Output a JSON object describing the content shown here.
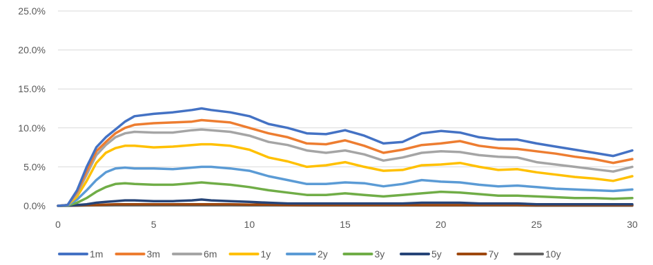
{
  "chart_data": {
    "type": "line",
    "title": "",
    "xlabel": "",
    "ylabel": "",
    "xlim": [
      0,
      30
    ],
    "ylim": [
      0,
      0.25
    ],
    "x_ticks": [
      0,
      5,
      10,
      15,
      20,
      25,
      30
    ],
    "y_ticks": [
      0.0,
      0.05,
      0.1,
      0.15,
      0.2,
      0.25
    ],
    "y_tick_labels": [
      "0.0%",
      "5.0%",
      "10.0%",
      "15.0%",
      "20.0%",
      "25.0%"
    ],
    "grid": "horizontal",
    "legend": "bottom",
    "x": [
      0,
      0.5,
      1,
      1.5,
      2,
      2.5,
      3,
      3.5,
      4,
      5,
      6,
      7,
      7.5,
      8,
      9,
      10,
      11,
      12,
      13,
      14,
      15,
      16,
      17,
      18,
      19,
      20,
      21,
      22,
      23,
      24,
      25,
      26,
      27,
      28,
      29,
      30
    ],
    "series": [
      {
        "name": "1m",
        "color": "#4472C4",
        "values": [
          0,
          0.001,
          0.02,
          0.05,
          0.075,
          0.088,
          0.098,
          0.108,
          0.115,
          0.118,
          0.12,
          0.123,
          0.125,
          0.123,
          0.12,
          0.115,
          0.105,
          0.1,
          0.093,
          0.092,
          0.097,
          0.09,
          0.08,
          0.082,
          0.093,
          0.096,
          0.094,
          0.088,
          0.085,
          0.085,
          0.08,
          0.076,
          0.072,
          0.068,
          0.064,
          0.071
        ]
      },
      {
        "name": "3m",
        "color": "#ED7D31",
        "values": [
          0,
          0.001,
          0.018,
          0.045,
          0.07,
          0.082,
          0.093,
          0.1,
          0.104,
          0.106,
          0.107,
          0.108,
          0.11,
          0.109,
          0.107,
          0.1,
          0.093,
          0.088,
          0.08,
          0.079,
          0.084,
          0.077,
          0.068,
          0.072,
          0.078,
          0.08,
          0.083,
          0.077,
          0.074,
          0.073,
          0.07,
          0.067,
          0.063,
          0.06,
          0.055,
          0.06
        ]
      },
      {
        "name": "6m",
        "color": "#A5A5A5",
        "values": [
          0,
          0.001,
          0.016,
          0.04,
          0.065,
          0.078,
          0.088,
          0.093,
          0.095,
          0.094,
          0.094,
          0.097,
          0.098,
          0.097,
          0.095,
          0.09,
          0.082,
          0.078,
          0.071,
          0.068,
          0.071,
          0.066,
          0.058,
          0.062,
          0.068,
          0.07,
          0.069,
          0.065,
          0.063,
          0.062,
          0.056,
          0.053,
          0.05,
          0.047,
          0.044,
          0.05
        ]
      },
      {
        "name": "1y",
        "color": "#FFC000",
        "values": [
          0,
          0.001,
          0.012,
          0.032,
          0.055,
          0.068,
          0.074,
          0.077,
          0.077,
          0.075,
          0.076,
          0.078,
          0.079,
          0.079,
          0.077,
          0.072,
          0.062,
          0.057,
          0.05,
          0.052,
          0.056,
          0.05,
          0.045,
          0.046,
          0.052,
          0.053,
          0.055,
          0.05,
          0.046,
          0.047,
          0.043,
          0.04,
          0.037,
          0.035,
          0.032,
          0.038
        ]
      },
      {
        "name": "2y",
        "color": "#5B9BD5",
        "values": [
          0,
          0.0005,
          0.008,
          0.02,
          0.033,
          0.043,
          0.048,
          0.049,
          0.048,
          0.048,
          0.047,
          0.049,
          0.05,
          0.05,
          0.048,
          0.045,
          0.038,
          0.033,
          0.028,
          0.028,
          0.03,
          0.029,
          0.025,
          0.028,
          0.033,
          0.031,
          0.03,
          0.027,
          0.025,
          0.026,
          0.024,
          0.022,
          0.021,
          0.02,
          0.019,
          0.021
        ]
      },
      {
        "name": "3y",
        "color": "#70AD47",
        "values": [
          0,
          0.0003,
          0.004,
          0.01,
          0.018,
          0.024,
          0.028,
          0.029,
          0.028,
          0.027,
          0.027,
          0.029,
          0.03,
          0.029,
          0.027,
          0.024,
          0.02,
          0.017,
          0.014,
          0.014,
          0.016,
          0.014,
          0.012,
          0.014,
          0.016,
          0.018,
          0.017,
          0.015,
          0.013,
          0.013,
          0.012,
          0.011,
          0.01,
          0.01,
          0.009,
          0.01
        ]
      },
      {
        "name": "5y",
        "color": "#264478",
        "values": [
          0,
          0.0001,
          0.001,
          0.002,
          0.004,
          0.005,
          0.006,
          0.007,
          0.007,
          0.006,
          0.006,
          0.007,
          0.008,
          0.007,
          0.006,
          0.005,
          0.004,
          0.003,
          0.003,
          0.003,
          0.003,
          0.003,
          0.003,
          0.003,
          0.004,
          0.004,
          0.004,
          0.003,
          0.003,
          0.003,
          0.002,
          0.002,
          0.002,
          0.002,
          0.002,
          0.002
        ]
      },
      {
        "name": "7y",
        "color": "#9E480E",
        "values": [
          0,
          0.0001,
          0.0005,
          0.001,
          0.001,
          0.0015,
          0.002,
          0.002,
          0.002,
          0.002,
          0.002,
          0.002,
          0.002,
          0.002,
          0.002,
          0.0015,
          0.0015,
          0.001,
          0.001,
          0.001,
          0.001,
          0.001,
          0.001,
          0.001,
          0.001,
          0.001,
          0.001,
          0.001,
          0.001,
          0.001,
          0.0008,
          0.0008,
          0.0008,
          0.0008,
          0.0008,
          0.0008
        ]
      },
      {
        "name": "10y",
        "color": "#636363",
        "values": [
          0,
          0.0001,
          0.0002,
          0.0004,
          0.0005,
          0.0005,
          0.0006,
          0.0006,
          0.0006,
          0.0006,
          0.0006,
          0.0006,
          0.0006,
          0.0006,
          0.0006,
          0.0005,
          0.0005,
          0.0005,
          0.0004,
          0.0004,
          0.0004,
          0.0004,
          0.0004,
          0.0004,
          0.0004,
          0.0004,
          0.0004,
          0.0004,
          0.0004,
          0.0004,
          0.0003,
          0.0003,
          0.0003,
          0.0003,
          0.0003,
          0.0003
        ]
      }
    ]
  }
}
